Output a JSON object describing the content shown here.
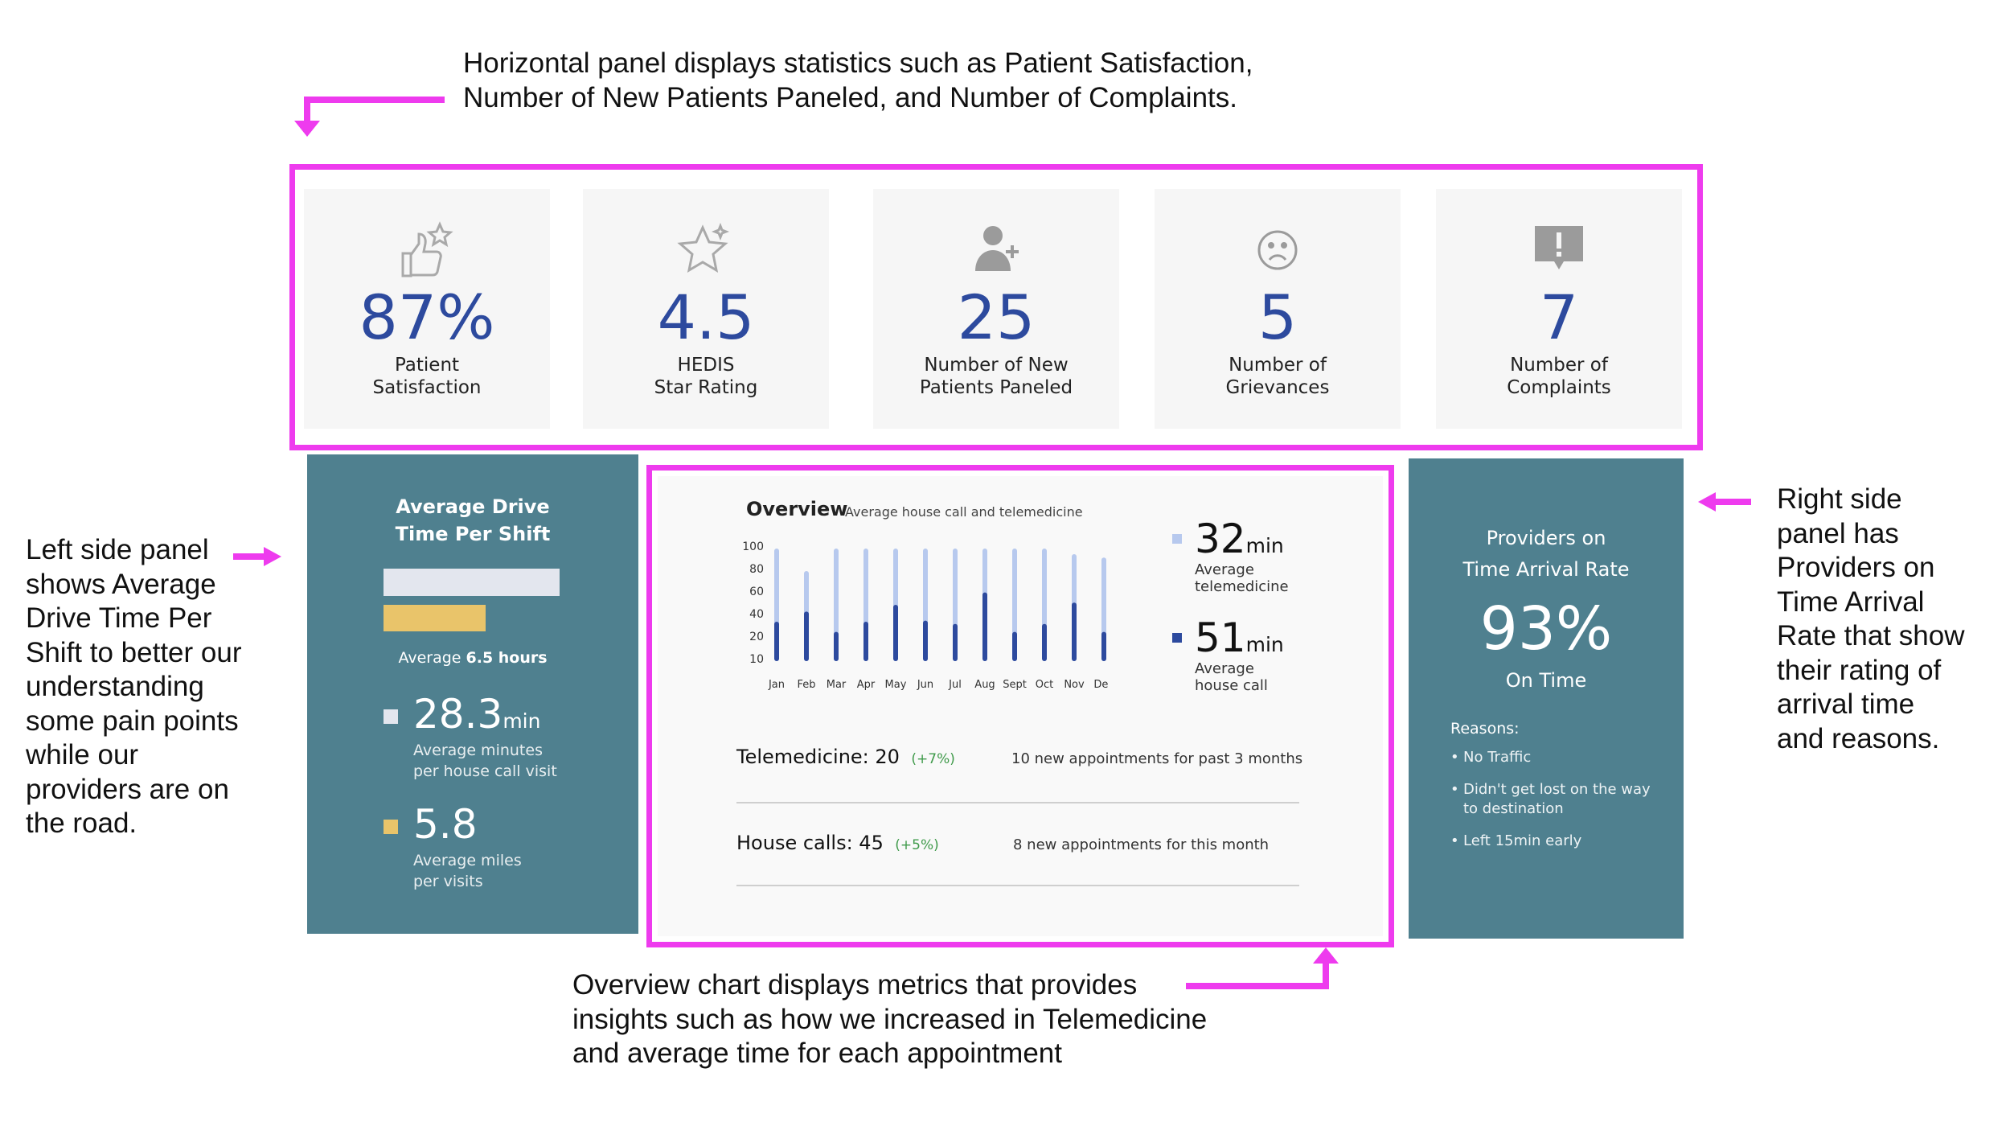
{
  "annotations": {
    "top": [
      "Horizontal panel displays statistics such as Patient Satisfaction,",
      "Number of New Patients Paneled, and Number of Complaints."
    ],
    "left": [
      "Left side panel",
      "shows Average",
      "Drive Time Per",
      "Shift to better our",
      "understanding",
      "some pain points",
      "while our",
      "providers are on",
      "the road."
    ],
    "right": [
      "Right side",
      "panel has",
      "Providers on",
      "Time Arrival",
      "Rate that show",
      "their rating of",
      "arrival time",
      "and reasons."
    ],
    "bottom": [
      "Overview chart displays metrics that provides",
      "insights such as how we increased in Telemedicine",
      "and average time for each appointment"
    ]
  },
  "highlight_color": "#ee3bee",
  "stats": [
    {
      "icon": "thumbs-up-star-icon",
      "value": "87%",
      "label": [
        "Patient",
        "Satisfaction"
      ]
    },
    {
      "icon": "star-icon",
      "value": "4.5",
      "label": [
        "HEDIS",
        "Star Rating"
      ]
    },
    {
      "icon": "add-user-icon",
      "value": "25",
      "label": [
        "Number of New",
        "Patients Paneled"
      ]
    },
    {
      "icon": "sad-face-icon",
      "value": "5",
      "label": [
        "Number of",
        "Grievances"
      ]
    },
    {
      "icon": "alert-icon",
      "value": "7",
      "label": [
        "Number of",
        "Complaints"
      ]
    }
  ],
  "left_panel": {
    "title": [
      "Average Drive",
      "Time Per Shift"
    ],
    "avg_prefix": "Average ",
    "avg_value": "6.5 hours",
    "bar_fractions": {
      "light": 1.0,
      "yellow": 0.58
    },
    "metric1": {
      "value": "28.3",
      "unit": "min",
      "label": [
        "Average minutes",
        "per house call visit"
      ],
      "color": "#e3e6ee"
    },
    "metric2": {
      "value": "5.8",
      "unit": "",
      "label": [
        "Average miles",
        "per visits"
      ],
      "color": "#e9c46a"
    }
  },
  "overview": {
    "title": "Overview",
    "subtitle": "Average house call and telemedicine",
    "stat1": {
      "value": "32",
      "unit": "min",
      "label": [
        "Average",
        "telemedicine"
      ],
      "color": "#b7c9ee"
    },
    "stat2": {
      "value": "51",
      "unit": "min",
      "label": [
        "Average",
        "house call"
      ],
      "color": "#2d4a9e"
    },
    "rows": [
      {
        "label": "Telemedicine: ",
        "value": "20",
        "change": "(+7%)",
        "note": "10 new appointments for past 3 months"
      },
      {
        "label": "House calls: ",
        "value": "45",
        "change": "(+5%)",
        "note": "8 new appointments for this month"
      }
    ]
  },
  "chart_data": {
    "type": "bar",
    "categories": [
      "Jan",
      "Feb",
      "Mar",
      "Apr",
      "May",
      "Jun",
      "Jul",
      "Aug",
      "Sept",
      "Oct",
      "Nov",
      "Dec"
    ],
    "y_ticks": [
      100,
      80,
      60,
      40,
      20,
      10
    ],
    "ylim": [
      0,
      100
    ],
    "series": [
      {
        "values": [
          100,
          80,
          100,
          100,
          100,
          100,
          100,
          100,
          100,
          100,
          95,
          92
        ],
        "color": "#b7c9ee"
      },
      {
        "values": [
          35,
          44,
          26,
          35,
          50,
          36,
          33,
          61,
          26,
          33,
          52,
          26
        ],
        "color": "#2d4a9e"
      }
    ],
    "grid": false,
    "legend": "none"
  },
  "right_panel": {
    "title": [
      "Providers on",
      "Time Arrival Rate"
    ],
    "value": "93%",
    "status": "On Time",
    "reasons_title": "Reasons:",
    "reasons": [
      [
        "No Traffic"
      ],
      [
        "Didn't get lost on the way",
        "to destination"
      ],
      [
        "Left 15min early"
      ]
    ]
  }
}
